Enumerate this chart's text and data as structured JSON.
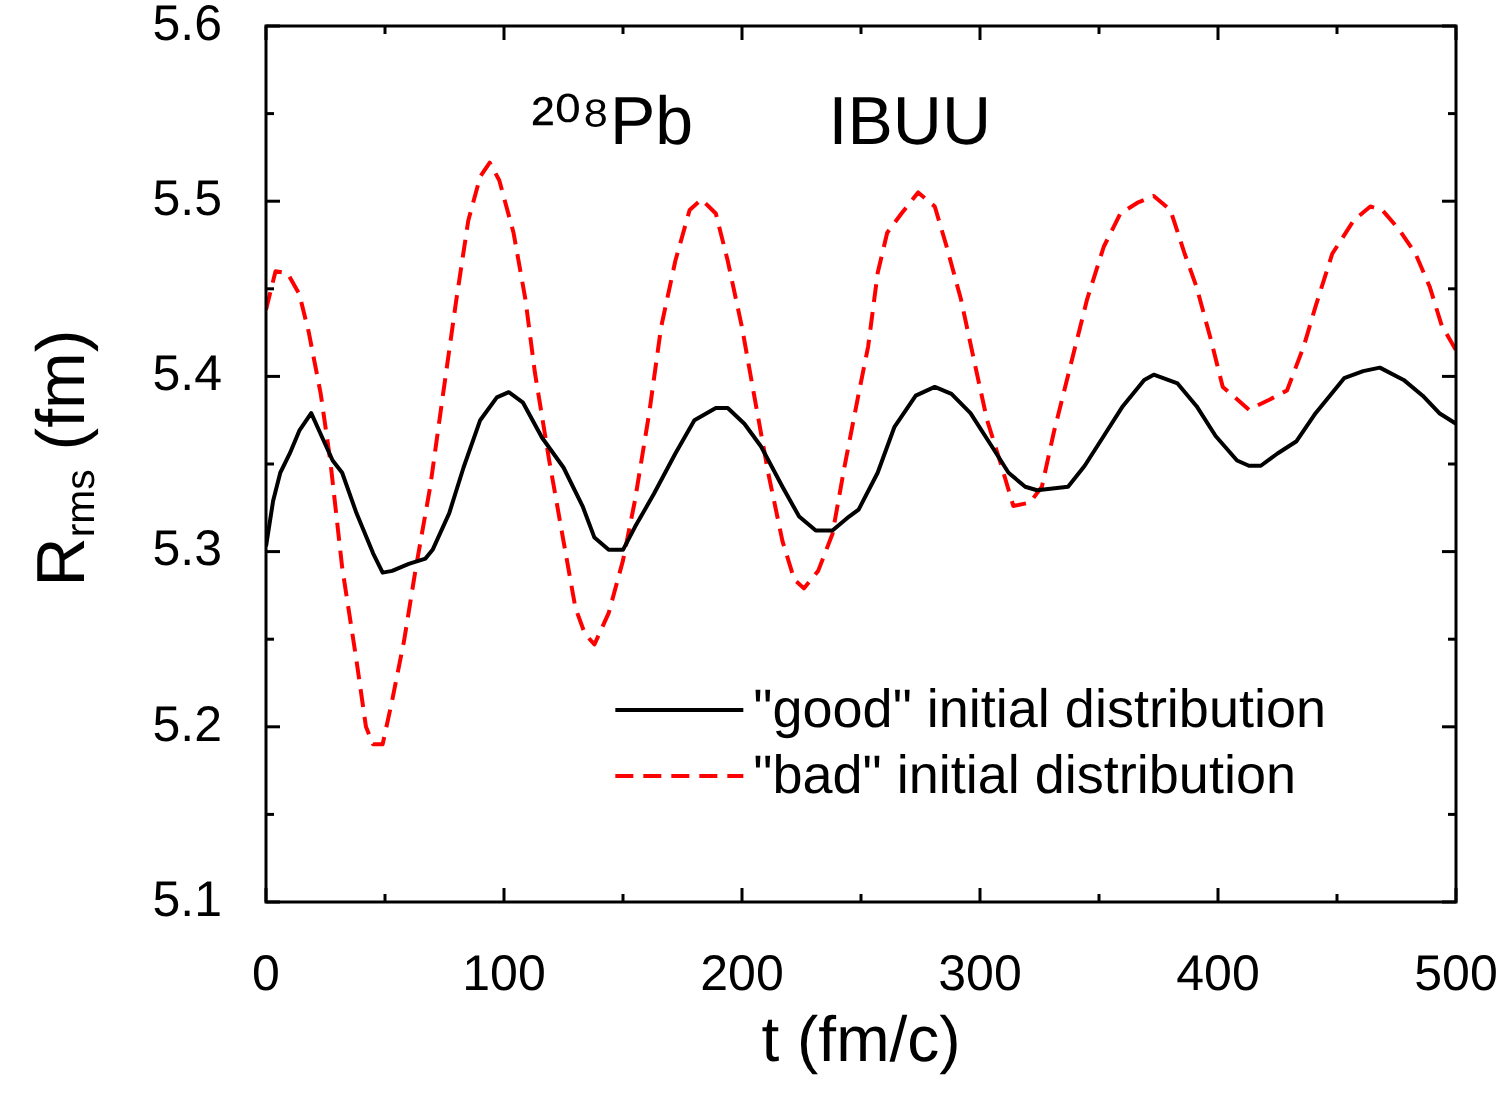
{
  "chart_data": {
    "type": "line",
    "xlabel": "t (fm/c)",
    "ylabel": "R$_{rms}$ (fm)",
    "annotations": [
      "²⁰⁸Pb",
      "IBUU"
    ],
    "xlim": [
      0,
      500
    ],
    "xticks": [
      0,
      {
        "value": 50,
        "label": null
      },
      100,
      {
        "value": 150,
        "label": null
      },
      200,
      {
        "value": 250,
        "label": null
      },
      300,
      {
        "value": 350,
        "label": null
      },
      400,
      {
        "value": 450,
        "label": null
      },
      500
    ],
    "ylim": [
      5.1,
      5.6
    ],
    "yticks": [
      5.1,
      {
        "value": 5.15,
        "label": null
      },
      5.2,
      {
        "value": 5.25,
        "label": null
      },
      5.3,
      {
        "value": 5.35,
        "label": null
      },
      5.4,
      {
        "value": 5.45,
        "label": null
      },
      5.5,
      {
        "value": 5.55,
        "label": null
      },
      5.6
    ],
    "grid": false,
    "legend": "bottom right",
    "marker": "none",
    "series": [
      {
        "name": "\"good\" initial distribution",
        "color": "#000000",
        "line_style": "solid",
        "x": [
          0,
          3,
          6,
          10,
          14,
          19,
          24,
          28,
          32,
          38,
          45,
          49,
          53,
          60,
          67,
          70,
          77,
          83,
          90,
          97,
          102,
          108,
          116,
          125,
          133,
          138,
          144,
          150,
          155,
          163,
          172,
          180,
          189,
          194,
          201,
          208,
          217,
          224,
          231,
          238,
          245,
          249,
          257,
          264,
          273,
          281,
          288,
          296,
          305,
          312,
          319,
          324,
          337,
          344,
          352,
          360,
          369,
          373,
          383,
          391,
          399,
          408,
          413,
          418,
          425,
          433,
          441,
          453,
          461,
          468,
          478,
          486,
          493,
          500
        ],
        "values": [
          5.303,
          5.329,
          5.345,
          5.356,
          5.369,
          5.379,
          5.364,
          5.352,
          5.345,
          5.322,
          5.299,
          5.288,
          5.289,
          5.293,
          5.296,
          5.301,
          5.322,
          5.348,
          5.375,
          5.388,
          5.391,
          5.385,
          5.365,
          5.348,
          5.326,
          5.308,
          5.301,
          5.301,
          5.314,
          5.333,
          5.356,
          5.375,
          5.382,
          5.382,
          5.373,
          5.36,
          5.337,
          5.32,
          5.312,
          5.312,
          5.32,
          5.324,
          5.345,
          5.371,
          5.389,
          5.394,
          5.39,
          5.379,
          5.36,
          5.345,
          5.337,
          5.335,
          5.337,
          5.349,
          5.366,
          5.383,
          5.398,
          5.401,
          5.396,
          5.383,
          5.366,
          5.352,
          5.349,
          5.349,
          5.356,
          5.363,
          5.379,
          5.399,
          5.403,
          5.405,
          5.398,
          5.389,
          5.379,
          5.373
        ]
      },
      {
        "name": "\"bad\" initial distribution",
        "color": "#ff0000",
        "line_style": "dashed",
        "x": [
          0,
          4,
          9,
          14,
          18,
          23,
          27,
          32,
          38,
          42,
          45,
          49,
          53,
          58,
          63,
          69,
          74,
          80,
          85,
          90,
          94,
          98,
          104,
          109,
          113,
          119,
          125,
          130,
          134,
          138,
          144,
          150,
          155,
          161,
          166,
          172,
          178,
          183,
          189,
          194,
          200,
          205,
          211,
          217,
          222,
          226,
          232,
          238,
          243,
          249,
          253,
          257,
          261,
          267,
          274,
          281,
          286,
          292,
          298,
          303,
          309,
          314,
          321,
          326,
          331,
          338,
          345,
          352,
          359,
          366,
          373,
          380,
          386,
          391,
          397,
          402,
          408,
          413,
          422,
          429,
          436,
          441,
          448,
          457,
          464,
          469,
          476,
          483,
          489,
          494,
          500
        ],
        "values": [
          5.438,
          5.46,
          5.459,
          5.447,
          5.425,
          5.39,
          5.352,
          5.291,
          5.238,
          5.2,
          5.19,
          5.19,
          5.215,
          5.249,
          5.291,
          5.337,
          5.386,
          5.444,
          5.489,
          5.514,
          5.522,
          5.512,
          5.482,
          5.444,
          5.402,
          5.352,
          5.306,
          5.268,
          5.253,
          5.247,
          5.265,
          5.295,
          5.329,
          5.379,
          5.428,
          5.466,
          5.495,
          5.501,
          5.493,
          5.466,
          5.428,
          5.39,
          5.345,
          5.306,
          5.284,
          5.279,
          5.289,
          5.31,
          5.348,
          5.39,
          5.417,
          5.459,
          5.482,
          5.493,
          5.505,
          5.497,
          5.474,
          5.444,
          5.406,
          5.375,
          5.349,
          5.326,
          5.328,
          5.337,
          5.368,
          5.406,
          5.444,
          5.474,
          5.493,
          5.499,
          5.503,
          5.495,
          5.47,
          5.451,
          5.421,
          5.394,
          5.387,
          5.381,
          5.387,
          5.392,
          5.417,
          5.44,
          5.47,
          5.489,
          5.497,
          5.495,
          5.484,
          5.47,
          5.451,
          5.429,
          5.415
        ]
      }
    ]
  }
}
